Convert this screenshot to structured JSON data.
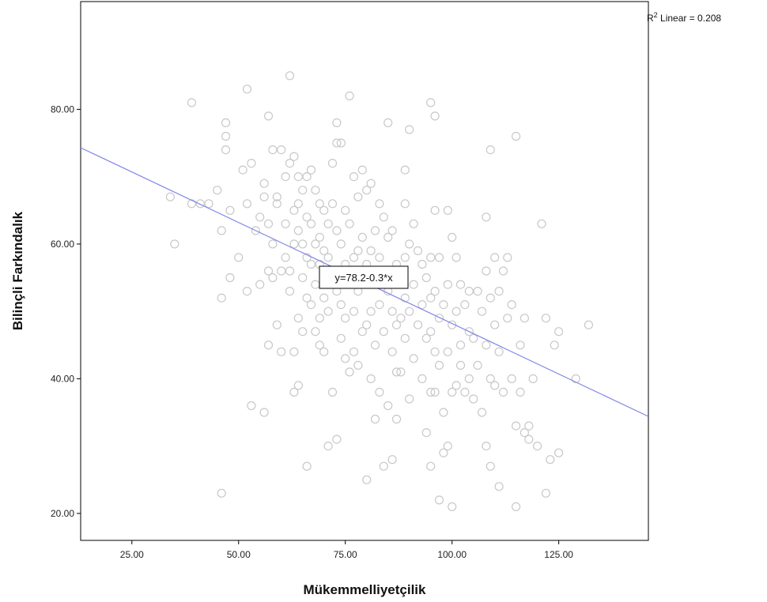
{
  "chart_data": {
    "type": "scatter",
    "xlabel": "Mükemmelliyetçilik",
    "ylabel": "Bilinçli Farkındalık",
    "xlim": [
      13,
      146
    ],
    "ylim": [
      16,
      96
    ],
    "xticks": [
      25,
      50,
      75,
      100,
      125
    ],
    "yticks": [
      20,
      40,
      60,
      80
    ],
    "xtick_labels": [
      "25.00",
      "50.00",
      "75.00",
      "100.00",
      "125.00"
    ],
    "ytick_labels": [
      "20.00",
      "40.00",
      "60.00",
      "80.00"
    ],
    "fit_line": {
      "intercept": 78.2,
      "slope": -0.3,
      "label": "y=78.2-0.3*x"
    },
    "r2_annotation": {
      "prefix": "R",
      "sup": "2",
      "suffix": " Linear = 0.208"
    },
    "colors": {
      "points": "#c8c8c8",
      "fit_line": "#7f86e6",
      "frame": "#000000"
    },
    "points": [
      [
        34,
        67
      ],
      [
        35,
        60
      ],
      [
        39,
        81
      ],
      [
        39,
        66
      ],
      [
        41,
        66
      ],
      [
        43,
        66
      ],
      [
        45,
        68
      ],
      [
        46,
        23
      ],
      [
        46,
        52
      ],
      [
        46,
        62
      ],
      [
        47,
        78
      ],
      [
        47,
        76
      ],
      [
        47,
        74
      ],
      [
        48,
        65
      ],
      [
        48,
        55
      ],
      [
        50,
        58
      ],
      [
        51,
        71
      ],
      [
        52,
        83
      ],
      [
        52,
        53
      ],
      [
        52,
        66
      ],
      [
        53,
        72
      ],
      [
        53,
        36
      ],
      [
        54,
        62
      ],
      [
        55,
        64
      ],
      [
        55,
        54
      ],
      [
        56,
        35
      ],
      [
        56,
        69
      ],
      [
        56,
        67
      ],
      [
        57,
        79
      ],
      [
        57,
        56
      ],
      [
        57,
        63
      ],
      [
        57,
        45
      ],
      [
        58,
        60
      ],
      [
        58,
        55
      ],
      [
        58,
        74
      ],
      [
        59,
        48
      ],
      [
        59,
        67
      ],
      [
        59,
        66
      ],
      [
        60,
        74
      ],
      [
        60,
        44
      ],
      [
        60,
        56
      ],
      [
        61,
        70
      ],
      [
        61,
        63
      ],
      [
        61,
        58
      ],
      [
        62,
        85
      ],
      [
        62,
        72
      ],
      [
        62,
        56
      ],
      [
        62,
        53
      ],
      [
        63,
        73
      ],
      [
        63,
        65
      ],
      [
        63,
        60
      ],
      [
        63,
        44
      ],
      [
        63,
        38
      ],
      [
        64,
        70
      ],
      [
        64,
        66
      ],
      [
        64,
        62
      ],
      [
        64,
        49
      ],
      [
        64,
        39
      ],
      [
        65,
        68
      ],
      [
        65,
        60
      ],
      [
        65,
        55
      ],
      [
        65,
        47
      ],
      [
        66,
        70
      ],
      [
        66,
        64
      ],
      [
        66,
        58
      ],
      [
        66,
        52
      ],
      [
        66,
        27
      ],
      [
        67,
        71
      ],
      [
        67,
        63
      ],
      [
        67,
        57
      ],
      [
        67,
        51
      ],
      [
        68,
        68
      ],
      [
        68,
        60
      ],
      [
        68,
        54
      ],
      [
        68,
        47
      ],
      [
        69,
        66
      ],
      [
        69,
        61
      ],
      [
        69,
        57
      ],
      [
        69,
        49
      ],
      [
        69,
        45
      ],
      [
        70,
        65
      ],
      [
        70,
        59
      ],
      [
        70,
        55
      ],
      [
        70,
        52
      ],
      [
        70,
        44
      ],
      [
        71,
        30
      ],
      [
        71,
        63
      ],
      [
        71,
        58
      ],
      [
        71,
        50
      ],
      [
        72,
        72
      ],
      [
        72,
        66
      ],
      [
        72,
        56
      ],
      [
        72,
        38
      ],
      [
        73,
        78
      ],
      [
        73,
        75
      ],
      [
        73,
        62
      ],
      [
        73,
        53
      ],
      [
        73,
        31
      ],
      [
        74,
        75
      ],
      [
        74,
        60
      ],
      [
        74,
        51
      ],
      [
        74,
        46
      ],
      [
        75,
        65
      ],
      [
        75,
        57
      ],
      [
        75,
        49
      ],
      [
        75,
        43
      ],
      [
        76,
        82
      ],
      [
        76,
        63
      ],
      [
        76,
        55
      ],
      [
        76,
        41
      ],
      [
        77,
        70
      ],
      [
        77,
        58
      ],
      [
        77,
        50
      ],
      [
        77,
        44
      ],
      [
        78,
        67
      ],
      [
        78,
        59
      ],
      [
        78,
        53
      ],
      [
        78,
        42
      ],
      [
        79,
        71
      ],
      [
        79,
        61
      ],
      [
        79,
        55
      ],
      [
        79,
        47
      ],
      [
        80,
        68
      ],
      [
        80,
        57
      ],
      [
        80,
        48
      ],
      [
        80,
        25
      ],
      [
        81,
        69
      ],
      [
        81,
        59
      ],
      [
        81,
        50
      ],
      [
        81,
        40
      ],
      [
        82,
        62
      ],
      [
        82,
        55
      ],
      [
        82,
        45
      ],
      [
        82,
        34
      ],
      [
        83,
        66
      ],
      [
        83,
        58
      ],
      [
        83,
        51
      ],
      [
        83,
        38
      ],
      [
        84,
        64
      ],
      [
        84,
        56
      ],
      [
        84,
        47
      ],
      [
        84,
        27
      ],
      [
        85,
        78
      ],
      [
        85,
        61
      ],
      [
        85,
        53
      ],
      [
        85,
        36
      ],
      [
        86,
        62
      ],
      [
        86,
        50
      ],
      [
        86,
        44
      ],
      [
        86,
        28
      ],
      [
        87,
        57
      ],
      [
        87,
        48
      ],
      [
        87,
        41
      ],
      [
        87,
        34
      ],
      [
        88,
        55
      ],
      [
        88,
        49
      ],
      [
        88,
        41
      ],
      [
        89,
        71
      ],
      [
        89,
        66
      ],
      [
        89,
        58
      ],
      [
        89,
        52
      ],
      [
        89,
        46
      ],
      [
        90,
        77
      ],
      [
        90,
        60
      ],
      [
        90,
        50
      ],
      [
        90,
        37
      ],
      [
        91,
        63
      ],
      [
        91,
        54
      ],
      [
        91,
        43
      ],
      [
        92,
        59
      ],
      [
        92,
        48
      ],
      [
        93,
        57
      ],
      [
        93,
        51
      ],
      [
        93,
        40
      ],
      [
        94,
        55
      ],
      [
        94,
        46
      ],
      [
        94,
        32
      ],
      [
        95,
        81
      ],
      [
        95,
        58
      ],
      [
        95,
        52
      ],
      [
        95,
        47
      ],
      [
        95,
        38
      ],
      [
        95,
        27
      ],
      [
        96,
        79
      ],
      [
        96,
        65
      ],
      [
        96,
        53
      ],
      [
        96,
        44
      ],
      [
        96,
        38
      ],
      [
        97,
        58
      ],
      [
        97,
        49
      ],
      [
        97,
        42
      ],
      [
        97,
        22
      ],
      [
        98,
        51
      ],
      [
        98,
        35
      ],
      [
        98,
        29
      ],
      [
        99,
        65
      ],
      [
        99,
        54
      ],
      [
        99,
        44
      ],
      [
        99,
        30
      ],
      [
        100,
        61
      ],
      [
        100,
        48
      ],
      [
        100,
        38
      ],
      [
        100,
        21
      ],
      [
        101,
        58
      ],
      [
        101,
        50
      ],
      [
        101,
        39
      ],
      [
        102,
        54
      ],
      [
        102,
        45
      ],
      [
        102,
        42
      ],
      [
        103,
        51
      ],
      [
        103,
        38
      ],
      [
        104,
        53
      ],
      [
        104,
        47
      ],
      [
        104,
        40
      ],
      [
        105,
        46
      ],
      [
        105,
        37
      ],
      [
        106,
        53
      ],
      [
        106,
        42
      ],
      [
        107,
        50
      ],
      [
        107,
        35
      ],
      [
        108,
        64
      ],
      [
        108,
        56
      ],
      [
        108,
        45
      ],
      [
        108,
        30
      ],
      [
        109,
        74
      ],
      [
        109,
        52
      ],
      [
        109,
        40
      ],
      [
        109,
        27
      ],
      [
        110,
        58
      ],
      [
        110,
        48
      ],
      [
        110,
        39
      ],
      [
        111,
        53
      ],
      [
        111,
        44
      ],
      [
        111,
        24
      ],
      [
        112,
        56
      ],
      [
        112,
        38
      ],
      [
        113,
        58
      ],
      [
        113,
        49
      ],
      [
        114,
        51
      ],
      [
        114,
        40
      ],
      [
        115,
        76
      ],
      [
        115,
        33
      ],
      [
        115,
        21
      ],
      [
        116,
        45
      ],
      [
        116,
        38
      ],
      [
        117,
        49
      ],
      [
        117,
        32
      ],
      [
        118,
        33
      ],
      [
        118,
        31
      ],
      [
        119,
        40
      ],
      [
        120,
        30
      ],
      [
        121,
        63
      ],
      [
        122,
        49
      ],
      [
        122,
        23
      ],
      [
        123,
        28
      ],
      [
        124,
        45
      ],
      [
        125,
        47
      ],
      [
        125,
        29
      ],
      [
        129,
        40
      ],
      [
        132,
        48
      ]
    ]
  }
}
